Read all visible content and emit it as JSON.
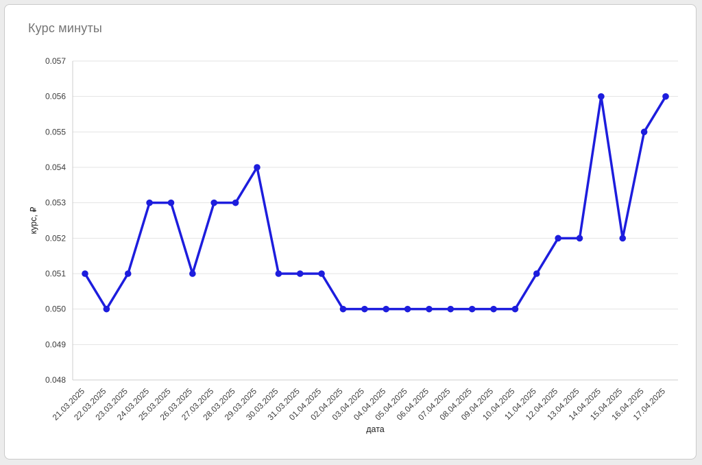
{
  "chart_data": {
    "type": "line",
    "title": "Курс минуты",
    "xlabel": "дата",
    "ylabel": "курс, ₽",
    "categories": [
      "21.03.2025",
      "22.03.2025",
      "23.03.2025",
      "24.03.2025",
      "25.03.2025",
      "26.03.2025",
      "27.03.2025",
      "28.03.2025",
      "29.03.2025",
      "30.03.2025",
      "31.03.2025",
      "01.04.2025",
      "02.04.2025",
      "03.04.2025",
      "04.04.2025",
      "05.04.2025",
      "06.04.2025",
      "07.04.2025",
      "08.04.2025",
      "09.04.2025",
      "10.04.2025",
      "11.04.2025",
      "12.04.2025",
      "13.04.2025",
      "14.04.2025",
      "15.04.2025",
      "16.04.2025",
      "17.04.2025"
    ],
    "values": [
      0.051,
      0.05,
      0.051,
      0.053,
      0.053,
      0.051,
      0.053,
      0.053,
      0.054,
      0.051,
      0.051,
      0.051,
      0.05,
      0.05,
      0.05,
      0.05,
      0.05,
      0.05,
      0.05,
      0.05,
      0.05,
      0.051,
      0.052,
      0.052,
      0.056,
      0.052,
      0.055,
      0.056
    ],
    "ylim": [
      0.048,
      0.057
    ],
    "ytick_step": 0.001,
    "ytick_decimals": 3,
    "grid": true,
    "legend": "none",
    "line_color": "#1d1ddd",
    "grid_color": "#e3e3e3",
    "axis_line_color": "#cccccc",
    "title_color": "#757575"
  }
}
